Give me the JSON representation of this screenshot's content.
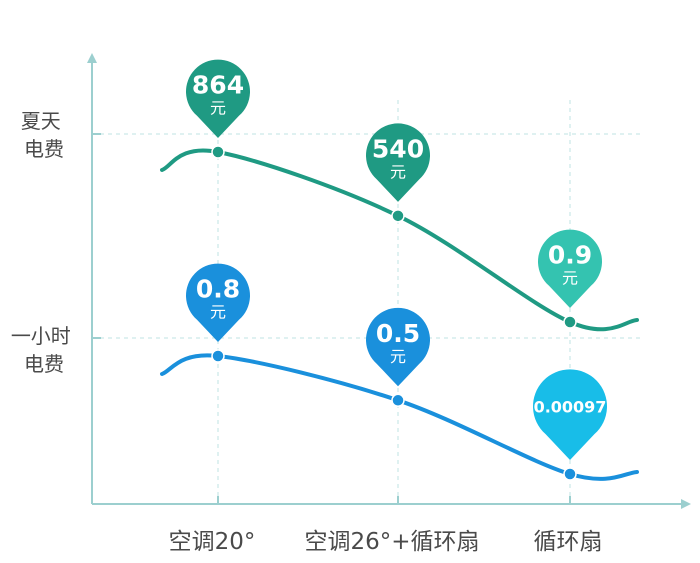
{
  "chart_data": {
    "type": "line",
    "categories": [
      "空调20°",
      "空调26°+循环扇",
      "循环扇"
    ],
    "y_labels": [
      {
        "lines": [
          "夏天",
          "电费"
        ]
      },
      {
        "lines": [
          "一小时",
          "电费"
        ]
      }
    ],
    "series": [
      {
        "values": [
          864,
          540,
          0.9
        ],
        "labels": [
          "864",
          "540",
          "0.9"
        ],
        "unit": "元",
        "color": "#1f9a83",
        "pin_colors": [
          "#1f9a83",
          "#1f9a83",
          "#34c3b0"
        ]
      },
      {
        "values": [
          0.8,
          0.5,
          0.00097
        ],
        "labels": [
          "0.8",
          "0.5",
          "0.00097"
        ],
        "unit": "元",
        "color": "#1a90dc",
        "pin_colors": [
          "#1a90dc",
          "#1a90dc",
          "#18bde8"
        ]
      }
    ],
    "axis_color": "#9ccfcf",
    "grid_color": "#bfe3e3",
    "grid": "dashed"
  }
}
